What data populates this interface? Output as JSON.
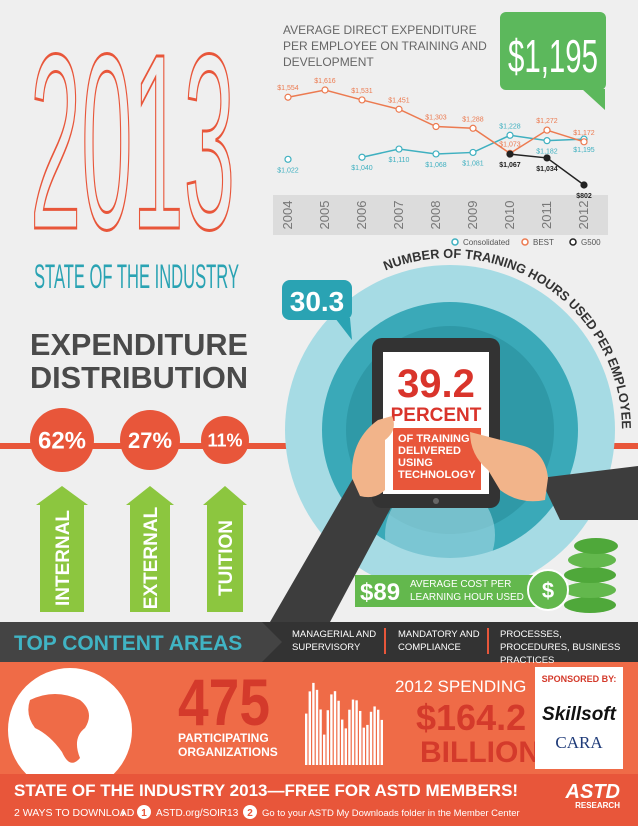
{
  "header": {
    "year": "2013",
    "subtitle": "STATE OF THE INDUSTRY"
  },
  "chart_data": {
    "type": "line",
    "title": "AVERAGE DIRECT EXPENDITURE PER EMPLOYEE ON TRAINING AND DEVELOPMENT",
    "callout": "$1,195",
    "categories": [
      "2004",
      "2005",
      "2006",
      "2007",
      "2008",
      "2009",
      "2010",
      "2011",
      "2012"
    ],
    "series": [
      {
        "name": "Consolidated",
        "color": "#3fb0c0",
        "values": [
          1022,
          null,
          1040,
          1110,
          1068,
          1081,
          1228,
          1182,
          1195
        ],
        "value_labels": [
          "$1,022",
          null,
          "$1,040",
          "$1,110",
          "$1,068",
          "$1,081",
          "$1,228",
          "$1,182",
          "$1,195"
        ]
      },
      {
        "name": "BEST",
        "color": "#ec7a50",
        "values": [
          1554,
          1616,
          1531,
          1451,
          1303,
          1288,
          1073,
          1272,
          1172
        ],
        "value_labels": [
          "$1,554",
          "$1,616",
          "$1,531",
          "$1,451",
          "$1,303",
          "$1,288",
          "$1,073",
          "$1,272",
          "$1,172"
        ]
      },
      {
        "name": "G500",
        "color": "#222222",
        "values": [
          null,
          null,
          null,
          null,
          null,
          null,
          1067,
          1034,
          802
        ],
        "value_labels": [
          null,
          null,
          null,
          null,
          null,
          null,
          "$1,067",
          "$1,034",
          "$802"
        ]
      }
    ]
  },
  "expenditure": {
    "title": [
      "EXPENDITURE",
      "DISTRIBUTION"
    ],
    "items": [
      {
        "share": "62%",
        "label": "INTERNAL"
      },
      {
        "share": "27%",
        "label": "EXTERNAL"
      },
      {
        "share": "11%",
        "label": "TUITION"
      }
    ]
  },
  "hours": {
    "value": "30.3",
    "label": "NUMBER OF TRAINING HOURS USED PER EMPLOYEE"
  },
  "technology": {
    "value": "39.2",
    "unit": "PERCENT",
    "label": "OF TRAINING DELIVERED USING TECHNOLOGY"
  },
  "cost": {
    "value": "$89",
    "label": "AVERAGE COST PER LEARNING HOUR USED"
  },
  "content_areas": {
    "title": "TOP CONTENT AREAS",
    "items": [
      "MANAGERIAL AND SUPERVISORY",
      "MANDATORY AND COMPLIANCE",
      "PROCESSES, PROCEDURES, BUSINESS PRACTICES"
    ]
  },
  "stats": {
    "organizations": {
      "value": "475",
      "label": "PARTICIPATING ORGANIZATIONS"
    },
    "spending": {
      "label": "2012 SPENDING",
      "value": "$164.2",
      "unit": "BILLION"
    }
  },
  "sponsors": {
    "label": "SPONSORED BY:",
    "names": [
      "Skillsoft",
      "CARA"
    ]
  },
  "footer": {
    "headline": "STATE OF THE INDUSTRY 2013—FREE FOR ASTD MEMBERS!",
    "download": "2 WAYS TO DOWNLOAD",
    "steps": [
      {
        "number": "1",
        "text": "ASTD.org/SOIR13"
      },
      {
        "number": "2",
        "text": "Go to your ASTD My Downloads folder in the Member Center"
      }
    ],
    "brand": "ASTD",
    "brand_sub": "RESEARCH"
  }
}
